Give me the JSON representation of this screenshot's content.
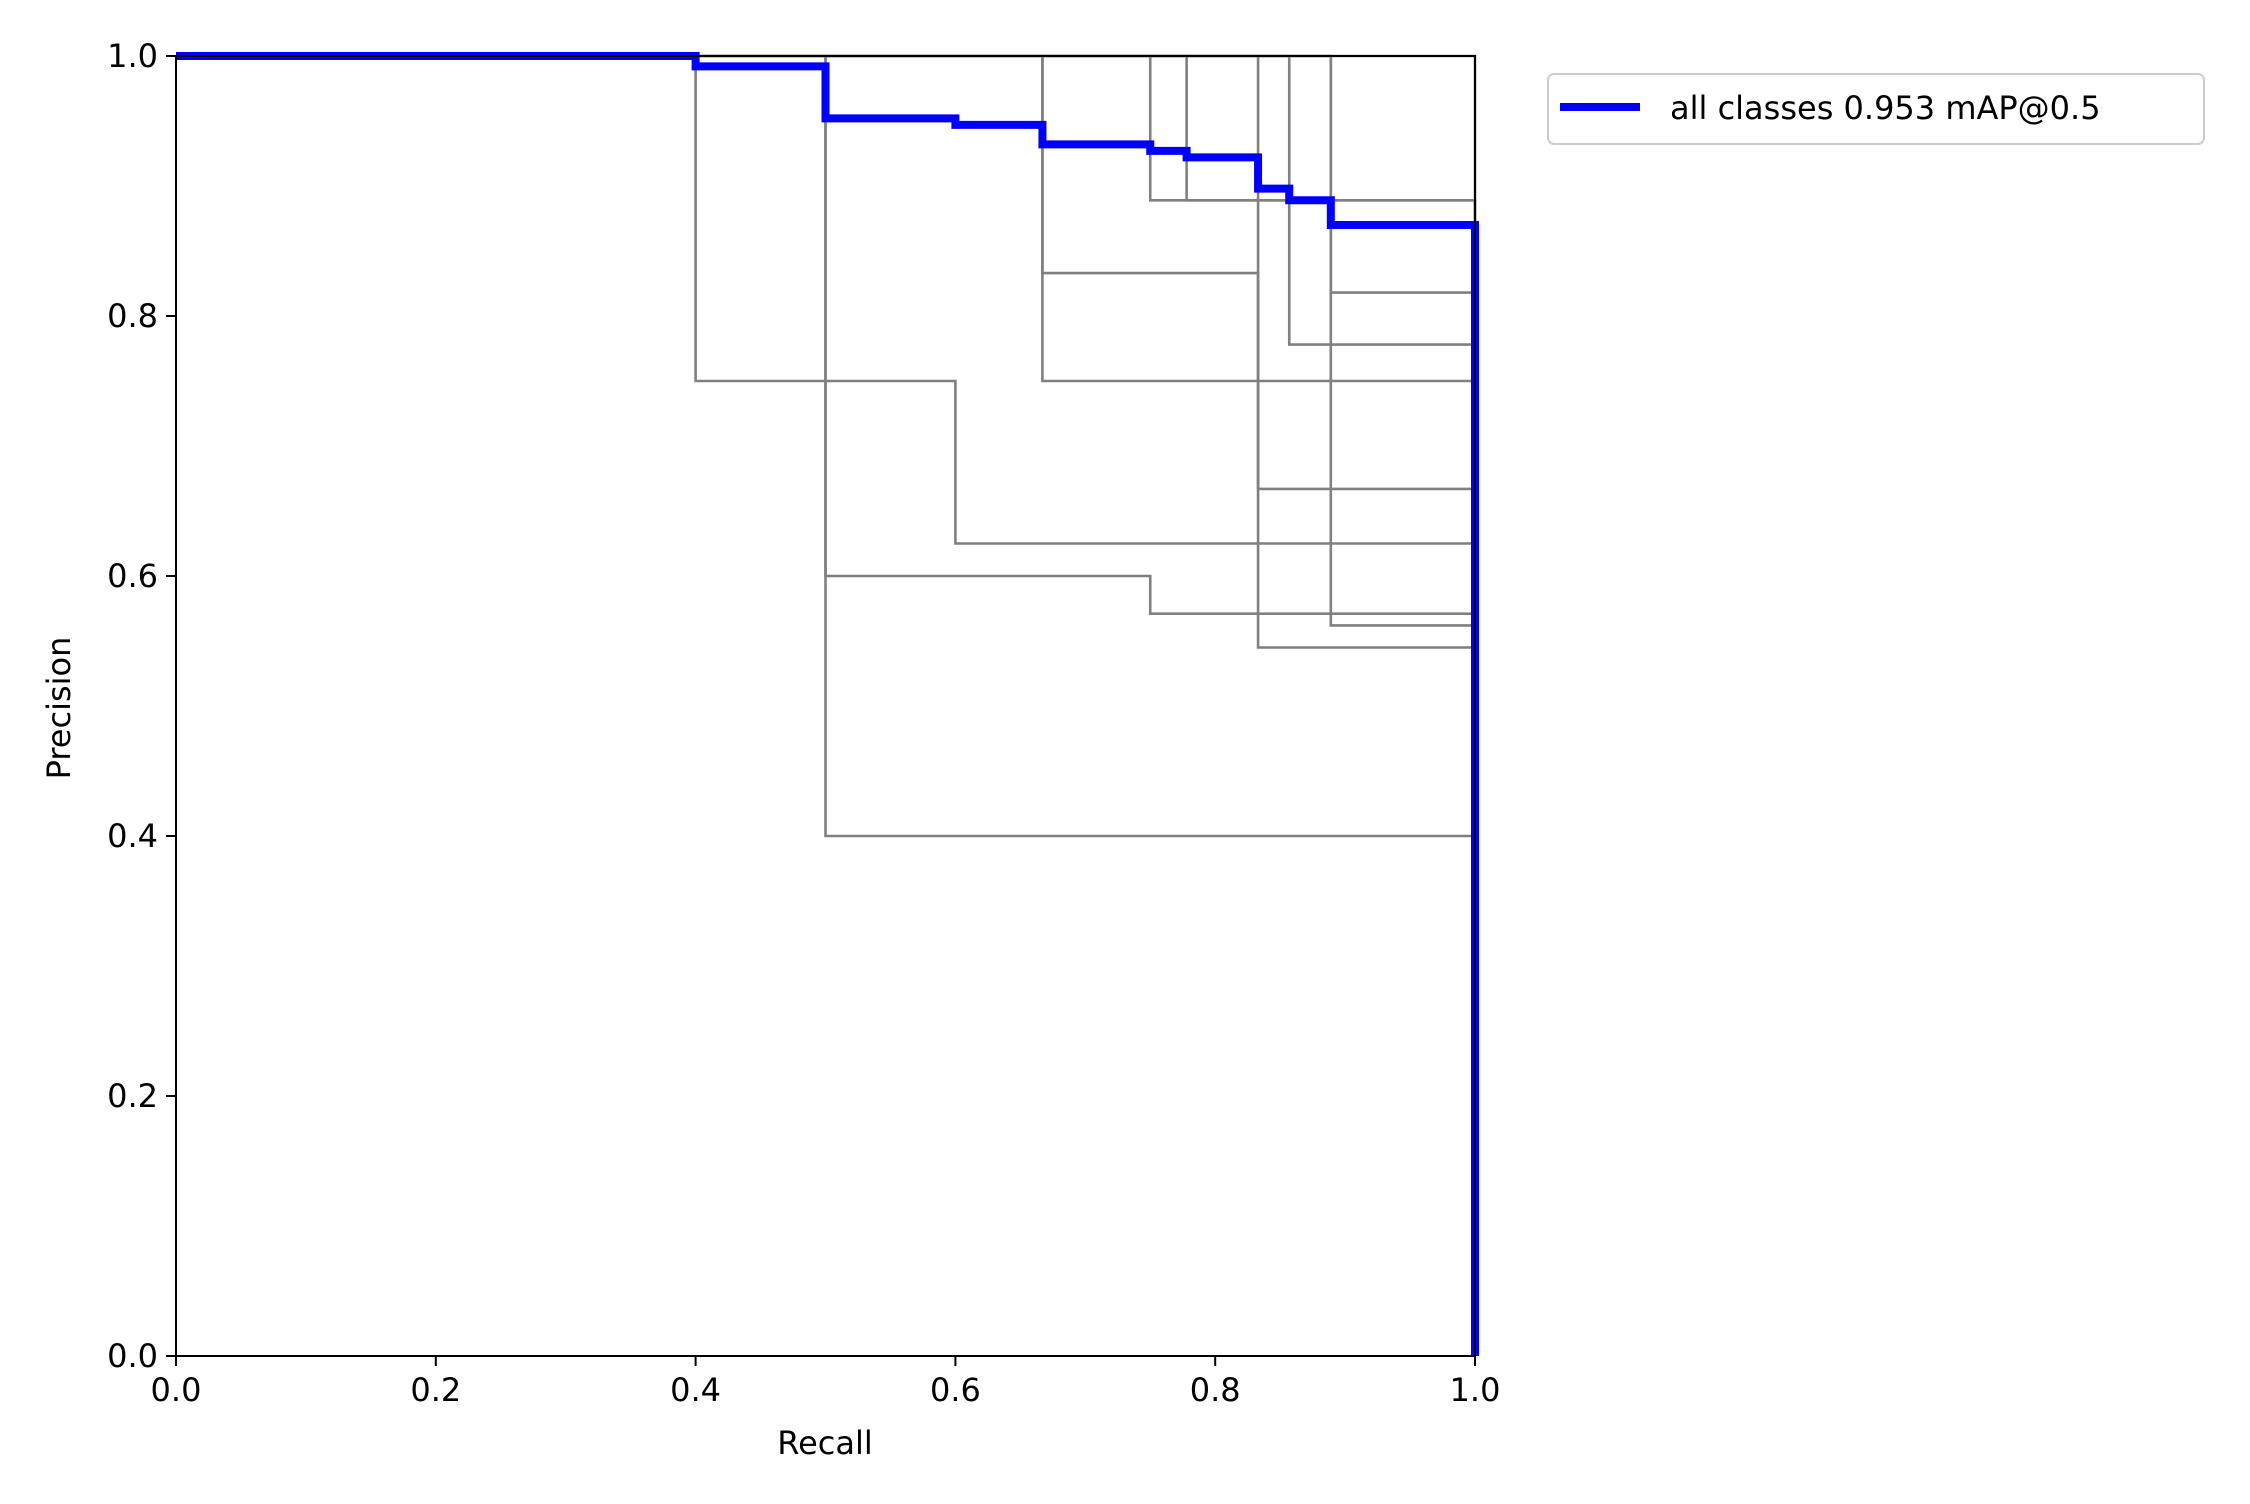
{
  "chart_data": {
    "type": "line",
    "title": "",
    "xlabel": "Recall",
    "ylabel": "Precision",
    "xlim": [
      0,
      1
    ],
    "ylim": [
      0,
      1
    ],
    "x_ticks": [
      "0.0",
      "0.2",
      "0.4",
      "0.6",
      "0.8",
      "1.0"
    ],
    "y_ticks": [
      "0.0",
      "0.2",
      "0.4",
      "0.6",
      "0.8",
      "1.0"
    ],
    "grid": false,
    "legend_position": "outside-top-right",
    "series": [
      {
        "name": "all classes 0.953 mAP@0.5",
        "color": "#0000ff",
        "emphasis": "bold",
        "points": [
          [
            0,
            1
          ],
          [
            0.4,
            1
          ],
          [
            0.4,
            0.992
          ],
          [
            0.5,
            0.992
          ],
          [
            0.5,
            0.952
          ],
          [
            0.6,
            0.952
          ],
          [
            0.6,
            0.947
          ],
          [
            0.667,
            0.947
          ],
          [
            0.667,
            0.932
          ],
          [
            0.75,
            0.932
          ],
          [
            0.75,
            0.927
          ],
          [
            0.778,
            0.927
          ],
          [
            0.778,
            0.922
          ],
          [
            0.833,
            0.922
          ],
          [
            0.833,
            0.898
          ],
          [
            0.857,
            0.898
          ],
          [
            0.857,
            0.889
          ],
          [
            0.889,
            0.889
          ],
          [
            0.889,
            0.87
          ],
          [
            1.0,
            0.87
          ],
          [
            1.0,
            0
          ]
        ]
      },
      {
        "name": "",
        "color": "#808080",
        "points": [
          [
            0,
            1
          ],
          [
            0.4,
            1
          ],
          [
            0.4,
            0.75
          ],
          [
            0.6,
            0.75
          ],
          [
            0.6,
            0.625
          ],
          [
            1.0,
            0.625
          ],
          [
            1.0,
            0
          ]
        ]
      },
      {
        "name": "",
        "color": "#808080",
        "points": [
          [
            0,
            1
          ],
          [
            0.5,
            1
          ],
          [
            0.5,
            0.4
          ],
          [
            1.0,
            0.4
          ],
          [
            1.0,
            0
          ]
        ]
      },
      {
        "name": "",
        "color": "#808080",
        "points": [
          [
            0,
            1
          ],
          [
            0.5,
            1
          ],
          [
            0.5,
            0.6
          ],
          [
            0.75,
            0.6
          ],
          [
            0.75,
            0.571
          ],
          [
            1.0,
            0.571
          ],
          [
            1.0,
            0
          ]
        ]
      },
      {
        "name": "",
        "color": "#808080",
        "points": [
          [
            0,
            1
          ],
          [
            0.667,
            1
          ],
          [
            0.667,
            0.75
          ],
          [
            1.0,
            0.75
          ],
          [
            1.0,
            0
          ]
        ]
      },
      {
        "name": "",
        "color": "#808080",
        "points": [
          [
            0,
            1
          ],
          [
            0.667,
            1
          ],
          [
            0.667,
            0.833
          ],
          [
            0.833,
            0.833
          ],
          [
            0.833,
            0.545
          ],
          [
            1.0,
            0.545
          ],
          [
            1.0,
            0
          ]
        ]
      },
      {
        "name": "",
        "color": "#808080",
        "points": [
          [
            0,
            1
          ],
          [
            0.75,
            1
          ],
          [
            0.75,
            0.889
          ],
          [
            1.0,
            0.889
          ],
          [
            1.0,
            0
          ]
        ]
      },
      {
        "name": "",
        "color": "#808080",
        "points": [
          [
            0,
            1
          ],
          [
            0.778,
            1
          ],
          [
            0.778,
            0.889
          ],
          [
            1.0,
            0.889
          ],
          [
            1.0,
            0
          ]
        ]
      },
      {
        "name": "",
        "color": "#808080",
        "points": [
          [
            0,
            1
          ],
          [
            0.833,
            1
          ],
          [
            0.833,
            0.667
          ],
          [
            1.0,
            0.667
          ],
          [
            1.0,
            0
          ]
        ]
      },
      {
        "name": "",
        "color": "#808080",
        "points": [
          [
            0,
            1
          ],
          [
            0.857,
            1
          ],
          [
            0.857,
            0.778
          ],
          [
            1.0,
            0.778
          ],
          [
            1.0,
            0
          ]
        ]
      },
      {
        "name": "",
        "color": "#808080",
        "points": [
          [
            0,
            1
          ],
          [
            0.889,
            1
          ],
          [
            0.889,
            0.818
          ],
          [
            1.0,
            0.818
          ],
          [
            1.0,
            0
          ]
        ]
      },
      {
        "name": "",
        "color": "#808080",
        "points": [
          [
            0,
            1
          ],
          [
            0.889,
            1
          ],
          [
            0.889,
            0.562
          ],
          [
            1.0,
            0.562
          ],
          [
            1.0,
            0
          ]
        ]
      },
      {
        "name": "",
        "color": "#808080",
        "points": [
          [
            0,
            1
          ],
          [
            1.0,
            1
          ],
          [
            1.0,
            0
          ]
        ]
      }
    ]
  }
}
